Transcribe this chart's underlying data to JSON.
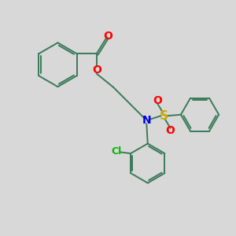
{
  "bg_color": "#d8d8d8",
  "bond_color": "#3a7a5a",
  "bond_width": 1.4,
  "atom_colors": {
    "O": "#ff0000",
    "N": "#0000ee",
    "S": "#ccaa00",
    "Cl": "#00bb00",
    "C": "#3a7a5a"
  },
  "font_size": 8,
  "figsize": [
    3.0,
    3.0
  ],
  "dpi": 100,
  "xlim": [
    0,
    10
  ],
  "ylim": [
    0,
    10
  ]
}
